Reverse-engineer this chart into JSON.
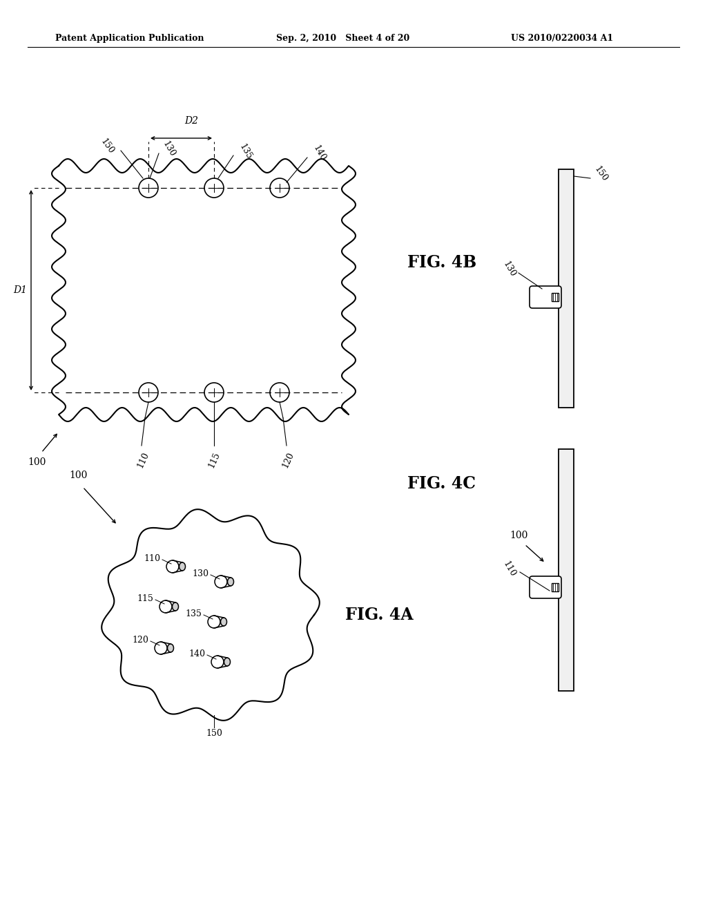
{
  "header_left": "Patent Application Publication",
  "header_mid": "Sep. 2, 2010   Sheet 4 of 20",
  "header_right": "US 2010/0220034 A1",
  "fig4b_label": "FIG. 4B",
  "fig4c_label": "FIG. 4C",
  "fig4a_label": "FIG. 4A",
  "background_color": "#ffffff",
  "line_color": "#000000"
}
